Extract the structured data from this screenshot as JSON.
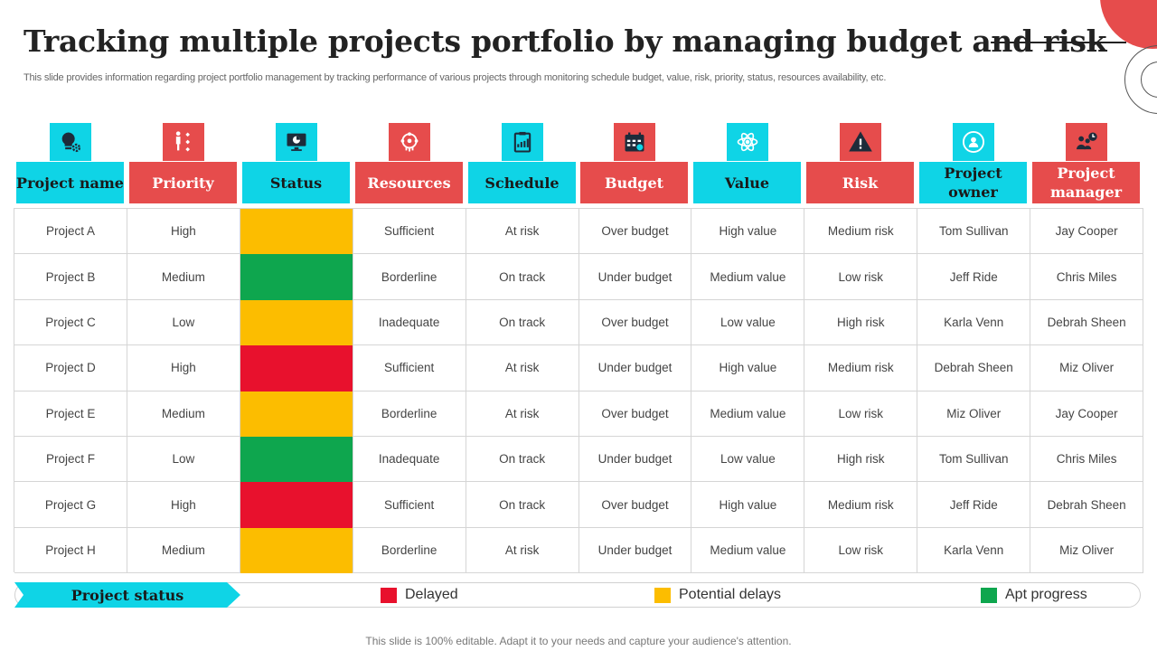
{
  "title": "Tracking multiple projects portfolio by managing budget and risk",
  "subtitle": "This slide provides information regarding project portfolio management by tracking performance of various projects through monitoring schedule budget, value, risk, priority,  status, resources availability, etc.",
  "colors": {
    "cyan": "#0fd4e6",
    "red": "#e64c4c",
    "delayed": "#e8112d",
    "potential": "#fcbd00",
    "apt": "#0ea64e"
  },
  "columns": [
    {
      "label": "Project name",
      "icon": "lightbulb-gear-icon",
      "color": "cyan"
    },
    {
      "label": "Priority",
      "icon": "priority-list-icon",
      "color": "red"
    },
    {
      "label": "Status",
      "icon": "monitor-chart-icon",
      "color": "cyan"
    },
    {
      "label": "Resources",
      "icon": "resources-network-icon",
      "color": "red"
    },
    {
      "label": "Schedule",
      "icon": "clipboard-chart-icon",
      "color": "cyan"
    },
    {
      "label": "Budget",
      "icon": "calendar-icon",
      "color": "red"
    },
    {
      "label": "Value",
      "icon": "atom-icon",
      "color": "cyan"
    },
    {
      "label": "Risk",
      "icon": "warning-icon",
      "color": "red"
    },
    {
      "label": "Project owner",
      "icon": "owner-cycle-icon",
      "color": "cyan"
    },
    {
      "label": "Project manager",
      "icon": "manager-clock-icon",
      "color": "red"
    }
  ],
  "rows": [
    {
      "name": "Project A",
      "priority": "High",
      "status": "potential",
      "resources": "Sufficient",
      "schedule": "At risk",
      "budget": "Over  budget",
      "value": "High value",
      "risk": "Medium risk",
      "owner": "Tom Sullivan",
      "manager": "Jay Cooper"
    },
    {
      "name": "Project B",
      "priority": "Medium",
      "status": "apt",
      "resources": "Borderline",
      "schedule": "On track",
      "budget": "Under  budget",
      "value": "Medium value",
      "risk": "Low risk",
      "owner": "Jeff Ride",
      "manager": "Chris Miles"
    },
    {
      "name": "Project C",
      "priority": "Low",
      "status": "potential",
      "resources": "Inadequate",
      "schedule": "On track",
      "budget": "Over  budget",
      "value": "Low value",
      "risk": "High risk",
      "owner": "Karla Venn",
      "manager": "Debrah  Sheen"
    },
    {
      "name": "Project D",
      "priority": "High",
      "status": "delayed",
      "resources": "Sufficient",
      "schedule": "At risk",
      "budget": "Under  budget",
      "value": "High value",
      "risk": "Medium risk",
      "owner": "Debrah  Sheen",
      "manager": "Miz Oliver"
    },
    {
      "name": "Project E",
      "priority": "Medium",
      "status": "potential",
      "resources": "Borderline",
      "schedule": "At risk",
      "budget": "Over  budget",
      "value": "Medium value",
      "risk": "Low risk",
      "owner": "Miz Oliver",
      "manager": "Jay Cooper"
    },
    {
      "name": "Project F",
      "priority": "Low",
      "status": "apt",
      "resources": "Inadequate",
      "schedule": "On track",
      "budget": "Under  budget",
      "value": "Low value",
      "risk": "High risk",
      "owner": "Tom Sullivan",
      "manager": "Chris Miles"
    },
    {
      "name": "Project G",
      "priority": "High",
      "status": "delayed",
      "resources": "Sufficient",
      "schedule": "On track",
      "budget": "Over  budget",
      "value": "High value",
      "risk": "Medium risk",
      "owner": "Jeff Ride",
      "manager": "Debrah  Sheen"
    },
    {
      "name": "Project H",
      "priority": "Medium",
      "status": "potential",
      "resources": "Borderline",
      "schedule": "At risk",
      "budget": "Under  budget",
      "value": "Medium value",
      "risk": "Low risk",
      "owner": "Karla Venn",
      "manager": "Miz Oliver"
    }
  ],
  "legend": {
    "label": "Project status",
    "delayed": "Delayed",
    "potential": "Potential delays",
    "apt": "Apt progress"
  },
  "footer": "This slide is 100% editable. Adapt it to your needs and capture your audience's attention."
}
